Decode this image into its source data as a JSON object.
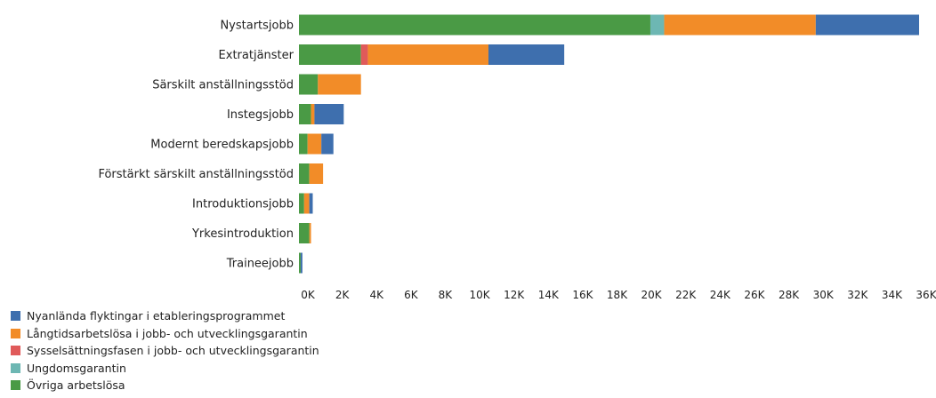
{
  "chart_data": {
    "type": "bar",
    "orientation": "horizontal",
    "stacked": true,
    "categories": [
      "Nystartsjobb",
      "Extratjänster",
      "Särskilt anställningsstöd",
      "Instegsjobb",
      "Modernt beredskapsjobb",
      "Förstärkt särskilt anställningsstöd",
      "Introduktionsjobb",
      "Yrkesintroduktion",
      "Traineejobb"
    ],
    "series": [
      {
        "name": "Övriga arbetslösa",
        "color": "#4a9a45",
        "values": [
          20400,
          3600,
          1100,
          700,
          500,
          600,
          300,
          600,
          100
        ]
      },
      {
        "name": "Ungdomsgarantin",
        "color": "#6db7b3",
        "values": [
          800,
          0,
          0,
          0,
          0,
          0,
          0,
          0,
          0
        ]
      },
      {
        "name": "Sysselsättningsfasen i jobb- och utvecklingsgarantin",
        "color": "#e05a5a",
        "values": [
          0,
          400,
          0,
          0,
          0,
          0,
          0,
          0,
          0
        ]
      },
      {
        "name": "Långtidsarbetslösa i jobb- och utvecklingsgarantin",
        "color": "#f28c28",
        "values": [
          8800,
          7000,
          2500,
          200,
          800,
          800,
          300,
          100,
          0
        ]
      },
      {
        "name": "Nyanlända flyktingar i etableringsprogrammet",
        "color": "#3e6fae",
        "values": [
          6000,
          4400,
          0,
          1700,
          700,
          0,
          200,
          0,
          100
        ]
      }
    ],
    "xlim": [
      0,
      36000
    ],
    "xticks": [
      "0K",
      "2K",
      "4K",
      "6K",
      "8K",
      "10K",
      "12K",
      "14K",
      "16K",
      "18K",
      "20K",
      "22K",
      "24K",
      "26K",
      "28K",
      "30K",
      "32K",
      "34K",
      "36K"
    ],
    "legend_placement": "bottom-left",
    "legend_order": [
      4,
      3,
      2,
      1,
      0
    ],
    "grid": false
  }
}
